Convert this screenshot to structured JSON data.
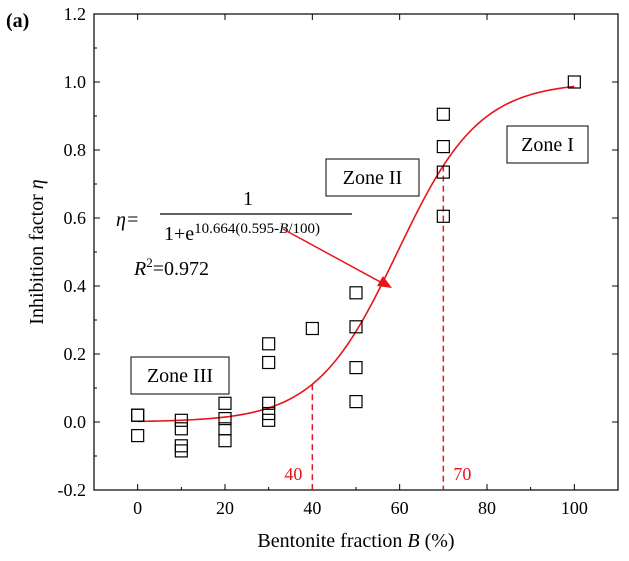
{
  "panel_label": "(a)",
  "chart_data": {
    "type": "scatter",
    "xlabel_parts": [
      "Bentonite fraction ",
      "B",
      " (%)"
    ],
    "ylabel_parts": [
      "Inhibition factor ",
      "η"
    ],
    "xlim": [
      -10,
      110
    ],
    "ylim": [
      -0.2,
      1.2
    ],
    "x_ticks": [
      0,
      20,
      40,
      60,
      80,
      100
    ],
    "y_ticks": [
      -0.2,
      0.0,
      0.2,
      0.4,
      0.6,
      0.8,
      1.0,
      1.2
    ],
    "x_tick_labels": [
      "0",
      "20",
      "40",
      "60",
      "80",
      "100"
    ],
    "y_tick_labels": [
      "-0.2",
      "0.0",
      "0.2",
      "0.4",
      "0.6",
      "0.8",
      "1.0",
      "1.2"
    ],
    "points": [
      {
        "x": 0,
        "y": 0.02
      },
      {
        "x": 0,
        "y": 0.02
      },
      {
        "x": 0,
        "y": -0.04
      },
      {
        "x": 10,
        "y": 0.005
      },
      {
        "x": 10,
        "y": -0.02
      },
      {
        "x": 10,
        "y": -0.07
      },
      {
        "x": 10,
        "y": -0.085
      },
      {
        "x": 20,
        "y": 0.055
      },
      {
        "x": 20,
        "y": 0.01
      },
      {
        "x": 20,
        "y": -0.02
      },
      {
        "x": 20,
        "y": -0.055
      },
      {
        "x": 30,
        "y": 0.23
      },
      {
        "x": 30,
        "y": 0.175
      },
      {
        "x": 30,
        "y": 0.055
      },
      {
        "x": 30,
        "y": 0.025
      },
      {
        "x": 30,
        "y": 0.005
      },
      {
        "x": 40,
        "y": 0.275
      },
      {
        "x": 50,
        "y": 0.38
      },
      {
        "x": 50,
        "y": 0.28
      },
      {
        "x": 50,
        "y": 0.16
      },
      {
        "x": 50,
        "y": 0.06
      },
      {
        "x": 70,
        "y": 0.905
      },
      {
        "x": 70,
        "y": 0.81
      },
      {
        "x": 70,
        "y": 0.735
      },
      {
        "x": 70,
        "y": 0.605
      },
      {
        "x": 100,
        "y": 1.0
      }
    ],
    "fit_curve": {
      "a": 10.664,
      "b": 0.595,
      "x_range": [
        0,
        100
      ],
      "color": "#e8141b",
      "r_squared": "0.972"
    },
    "reference_lines": [
      {
        "x": 40,
        "label": "40",
        "color": "#e8141b"
      },
      {
        "x": 70,
        "label": "70",
        "color": "#e8141b"
      }
    ],
    "annotations": {
      "zone_1": "Zone I",
      "zone_2": "Zone II",
      "zone_3": "Zone III",
      "eq_lhs": "η=",
      "eq_numerator": "1",
      "eq_den_base": "1+e",
      "eq_den_exp_1": "10.664(0.595-",
      "eq_den_exp_B": "B",
      "eq_den_exp_2": "/100)",
      "r2_R": "R",
      "r2_sup": "2",
      "r2_value": "=0.972"
    },
    "grid": false,
    "marker": "open-square"
  }
}
